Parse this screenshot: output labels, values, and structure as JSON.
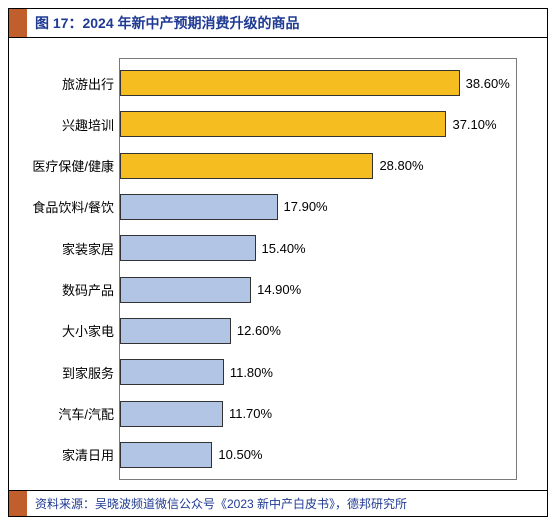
{
  "title": "图 17：2024 年新中产预期消费升级的商品",
  "source": "资料来源：吴晓波频道微信公众号《2023 新中产白皮书》，德邦研究所",
  "chart": {
    "type": "bar-horizontal",
    "xmax": 45,
    "highlight_color": "#f5bd1f",
    "normal_color": "#b3c5e5",
    "border_color": "#333333",
    "plot_border_color": "#7a7a7a",
    "title_color": "#1f3a93",
    "accent_block_color": "#c05f2c",
    "label_fontsize": 13,
    "value_fontsize": 13,
    "categories": [
      {
        "label": "旅游出行",
        "value": 38.6,
        "display": "38.60%",
        "highlight": true
      },
      {
        "label": "兴趣培训",
        "value": 37.1,
        "display": "37.10%",
        "highlight": true
      },
      {
        "label": "医疗保健/健康",
        "value": 28.8,
        "display": "28.80%",
        "highlight": true
      },
      {
        "label": "食品饮料/餐饮",
        "value": 17.9,
        "display": "17.90%",
        "highlight": false
      },
      {
        "label": "家装家居",
        "value": 15.4,
        "display": "15.40%",
        "highlight": false
      },
      {
        "label": "数码产品",
        "value": 14.9,
        "display": "14.90%",
        "highlight": false
      },
      {
        "label": "大小家电",
        "value": 12.6,
        "display": "12.60%",
        "highlight": false
      },
      {
        "label": "到家服务",
        "value": 11.8,
        "display": "11.80%",
        "highlight": false
      },
      {
        "label": "汽车/汽配",
        "value": 11.7,
        "display": "11.70%",
        "highlight": false
      },
      {
        "label": "家清日用",
        "value": 10.5,
        "display": "10.50%",
        "highlight": false
      }
    ]
  }
}
